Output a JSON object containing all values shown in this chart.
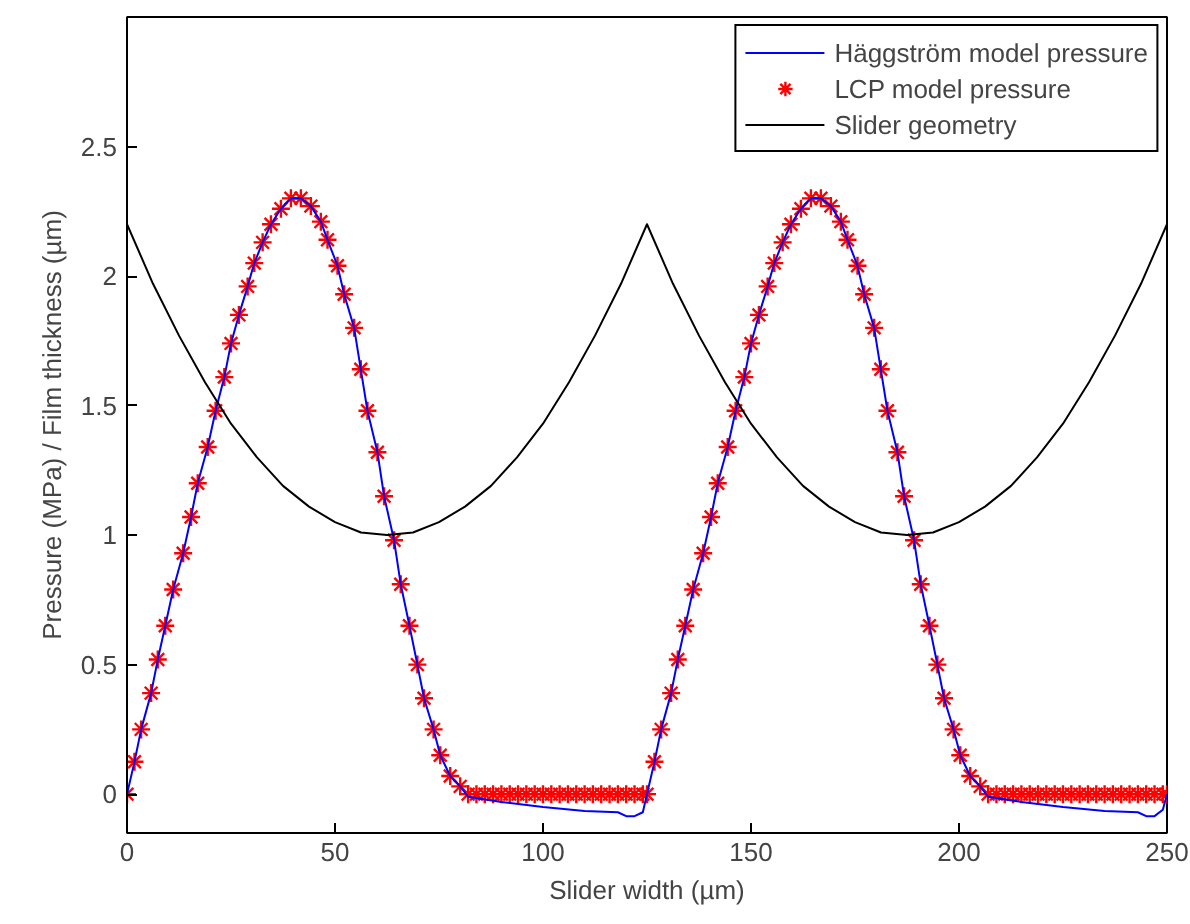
{
  "chart_data": {
    "type": "line",
    "xlabel": "Slider width (µm)",
    "ylabel": "Pressure (MPa) / Film thickness (µm)",
    "xlim": [
      0,
      250
    ],
    "ylim": [
      -0.15,
      3
    ],
    "xticks": [
      0,
      50,
      100,
      150,
      200,
      250
    ],
    "yticks": [
      0,
      0.5,
      1,
      1.5,
      2,
      2.5
    ],
    "grid": false,
    "legend": "top right",
    "series": [
      {
        "name": "Häggström model pressure",
        "color": "#0000ff",
        "line_style": "solid",
        "x": [
          0,
          1.8,
          3.4,
          5.8,
          7.4,
          9.2,
          11.1,
          13.5,
          15.4,
          17,
          19.4,
          21.3,
          23.4,
          25,
          26.9,
          29,
          30.6,
          32.6,
          34.6,
          37,
          39.4,
          41.8,
          44.2,
          46.6,
          48.2,
          50.6,
          52.2,
          54.6,
          56.2,
          57.8,
          60.2,
          61.8,
          64.2,
          65.8,
          67.9,
          69.8,
          71.4,
          73.7,
          75.3,
          77.7,
          80.1,
          82,
          90,
          100,
          110,
          118,
          120,
          122,
          124,
          125,
          126.8,
          128.4,
          130.8,
          132.4,
          134.2,
          136.1,
          138.5,
          140.4,
          142,
          144.4,
          146.3,
          148.4,
          150,
          151.9,
          154,
          155.6,
          157.6,
          159.6,
          162,
          164.4,
          166.8,
          169.2,
          171.6,
          173.2,
          175.6,
          177.2,
          179.6,
          181.2,
          182.8,
          185.2,
          186.8,
          189.2,
          190.8,
          192.9,
          194.8,
          196.4,
          198.7,
          200.3,
          202.7,
          205.1,
          207,
          215,
          225,
          235,
          243,
          245,
          247,
          249,
          250
        ],
        "values": [
          0,
          0.125,
          0.25,
          0.39,
          0.52,
          0.65,
          0.79,
          0.93,
          1.07,
          1.2,
          1.34,
          1.48,
          1.61,
          1.74,
          1.85,
          1.96,
          2.05,
          2.13,
          2.2,
          2.26,
          2.3,
          2.3,
          2.27,
          2.21,
          2.14,
          2.04,
          1.93,
          1.8,
          1.64,
          1.48,
          1.32,
          1.15,
          0.98,
          0.81,
          0.65,
          0.5,
          0.37,
          0.25,
          0.15,
          0.07,
          0.03,
          -0.01,
          -0.03,
          -0.05,
          -0.065,
          -0.07,
          -0.085,
          -0.085,
          -0.07,
          0,
          0.125,
          0.25,
          0.39,
          0.52,
          0.65,
          0.79,
          0.93,
          1.07,
          1.2,
          1.34,
          1.48,
          1.61,
          1.74,
          1.85,
          1.96,
          2.05,
          2.13,
          2.2,
          2.26,
          2.3,
          2.3,
          2.27,
          2.21,
          2.14,
          2.04,
          1.93,
          1.8,
          1.64,
          1.48,
          1.32,
          1.15,
          0.98,
          0.81,
          0.65,
          0.5,
          0.37,
          0.25,
          0.15,
          0.07,
          0.03,
          -0.01,
          -0.03,
          -0.05,
          -0.065,
          -0.07,
          -0.085,
          -0.085,
          -0.06,
          0
        ]
      },
      {
        "name": "LCP model pressure",
        "type": "scatter",
        "color": "#ff0000",
        "marker": "cross",
        "x": [
          0,
          1.8,
          3.4,
          5.8,
          7.4,
          9.2,
          11.1,
          13.5,
          15.4,
          17,
          19.4,
          21.3,
          23.4,
          25,
          26.9,
          29,
          30.6,
          32.6,
          34.6,
          37,
          39.4,
          41.8,
          44.2,
          46.6,
          48.2,
          50.6,
          52.2,
          54.6,
          56.2,
          57.8,
          60.2,
          61.8,
          64.2,
          65.8,
          67.9,
          69.8,
          71.4,
          73.7,
          75.3,
          77.7,
          80.1,
          82,
          84,
          86,
          88,
          90,
          92,
          94,
          96,
          98,
          100,
          102,
          104,
          106,
          108,
          110,
          112,
          114,
          116,
          118,
          120,
          122,
          124,
          125,
          126.8,
          128.4,
          130.8,
          132.4,
          134.2,
          136.1,
          138.5,
          140.4,
          142,
          144.4,
          146.3,
          148.4,
          150,
          151.9,
          154,
          155.6,
          157.6,
          159.6,
          162,
          164.4,
          166.8,
          169.2,
          171.6,
          173.2,
          175.6,
          177.2,
          179.6,
          181.2,
          182.8,
          185.2,
          186.8,
          189.2,
          190.8,
          192.9,
          194.8,
          196.4,
          198.7,
          200.3,
          202.7,
          205.1,
          207,
          209,
          211,
          213,
          215,
          217,
          219,
          221,
          223,
          225,
          227,
          229,
          231,
          233,
          235,
          237,
          239,
          241,
          243,
          245,
          247,
          249,
          250
        ],
        "values": [
          0,
          0.125,
          0.25,
          0.39,
          0.52,
          0.65,
          0.79,
          0.93,
          1.07,
          1.2,
          1.34,
          1.48,
          1.61,
          1.74,
          1.85,
          1.96,
          2.05,
          2.13,
          2.2,
          2.26,
          2.3,
          2.3,
          2.27,
          2.21,
          2.14,
          2.04,
          1.93,
          1.8,
          1.64,
          1.48,
          1.32,
          1.15,
          0.98,
          0.81,
          0.65,
          0.5,
          0.37,
          0.25,
          0.15,
          0.07,
          0.03,
          0,
          0,
          0,
          0,
          0,
          0,
          0,
          0,
          0,
          0,
          0,
          0,
          0,
          0,
          0,
          0,
          0,
          0,
          0,
          0,
          0,
          0,
          0,
          0.125,
          0.25,
          0.39,
          0.52,
          0.65,
          0.79,
          0.93,
          1.07,
          1.2,
          1.34,
          1.48,
          1.61,
          1.74,
          1.85,
          1.96,
          2.05,
          2.13,
          2.2,
          2.26,
          2.3,
          2.3,
          2.27,
          2.21,
          2.14,
          2.04,
          1.93,
          1.8,
          1.64,
          1.48,
          1.32,
          1.15,
          0.98,
          0.81,
          0.65,
          0.5,
          0.37,
          0.25,
          0.15,
          0.07,
          0.03,
          0,
          0,
          0,
          0,
          0,
          0,
          0,
          0,
          0,
          0,
          0,
          0,
          0,
          0,
          0,
          0,
          0,
          0,
          0,
          0,
          0,
          0,
          0
        ]
      },
      {
        "name": "Slider geometry",
        "color": "#000000",
        "line_style": "solid",
        "x": [
          0,
          6.25,
          12.5,
          18.75,
          25,
          31.25,
          37.5,
          43.75,
          50,
          56.25,
          62.5,
          68.75,
          75,
          81.25,
          87.5,
          93.75,
          100,
          106.25,
          112.5,
          118.75,
          125,
          131.25,
          137.5,
          143.75,
          150,
          156.25,
          162.5,
          168.75,
          175,
          181.25,
          187.5,
          193.75,
          200,
          206.25,
          212.5,
          218.75,
          225,
          231.25,
          237.5,
          243.75,
          250
        ],
        "values": [
          2.2,
          1.97,
          1.77,
          1.59,
          1.43,
          1.3,
          1.19,
          1.11,
          1.05,
          1.01,
          1.0,
          1.01,
          1.05,
          1.11,
          1.19,
          1.3,
          1.43,
          1.59,
          1.77,
          1.97,
          2.2,
          1.97,
          1.77,
          1.59,
          1.43,
          1.3,
          1.19,
          1.11,
          1.05,
          1.01,
          1.0,
          1.01,
          1.05,
          1.11,
          1.19,
          1.3,
          1.43,
          1.59,
          1.77,
          1.97,
          2.2
        ]
      }
    ]
  }
}
